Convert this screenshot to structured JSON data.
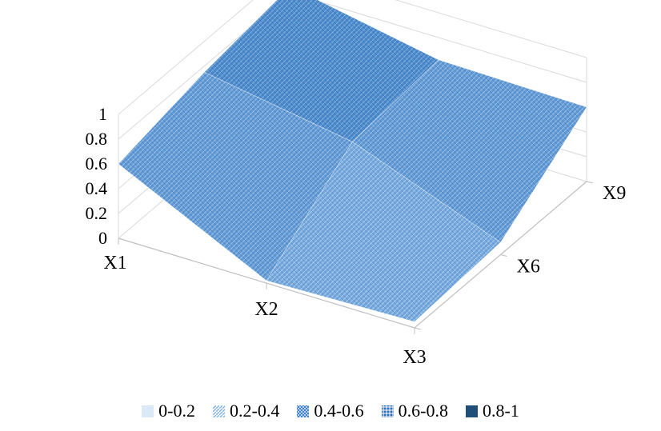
{
  "chart_data": {
    "type": "surface",
    "title": "",
    "z_axis": {
      "ticks": [
        "0",
        "0.2",
        "0.4",
        "0.6",
        "0.8",
        "1"
      ],
      "range": [
        0,
        1
      ]
    },
    "x_categories": [
      "X1",
      "X2",
      "X3"
    ],
    "depth_categories": [
      "X3",
      "X6",
      "X9"
    ],
    "depth_ticks_shown": [
      "X6",
      "X9"
    ],
    "z_values_estimated": [
      [
        0.6,
        0.75,
        0.85
      ],
      [
        0.02,
        0.55,
        0.62
      ],
      [
        0.05,
        0.1,
        0.6
      ]
    ],
    "legend": [
      {
        "label": "0-0.2",
        "color": "#dbe9f6",
        "pattern": "solid"
      },
      {
        "label": "0.2-0.4",
        "color": "#7fb2e0",
        "pattern": "diagonal"
      },
      {
        "label": "0.4-0.6",
        "color": "#3d7fc7",
        "pattern": "cross"
      },
      {
        "label": "0.6-0.8",
        "color": "#2f6fb7",
        "pattern": "grid"
      },
      {
        "label": "0.8-1",
        "color": "#1f4e79",
        "pattern": "solid"
      }
    ],
    "legend_position": "bottom"
  }
}
